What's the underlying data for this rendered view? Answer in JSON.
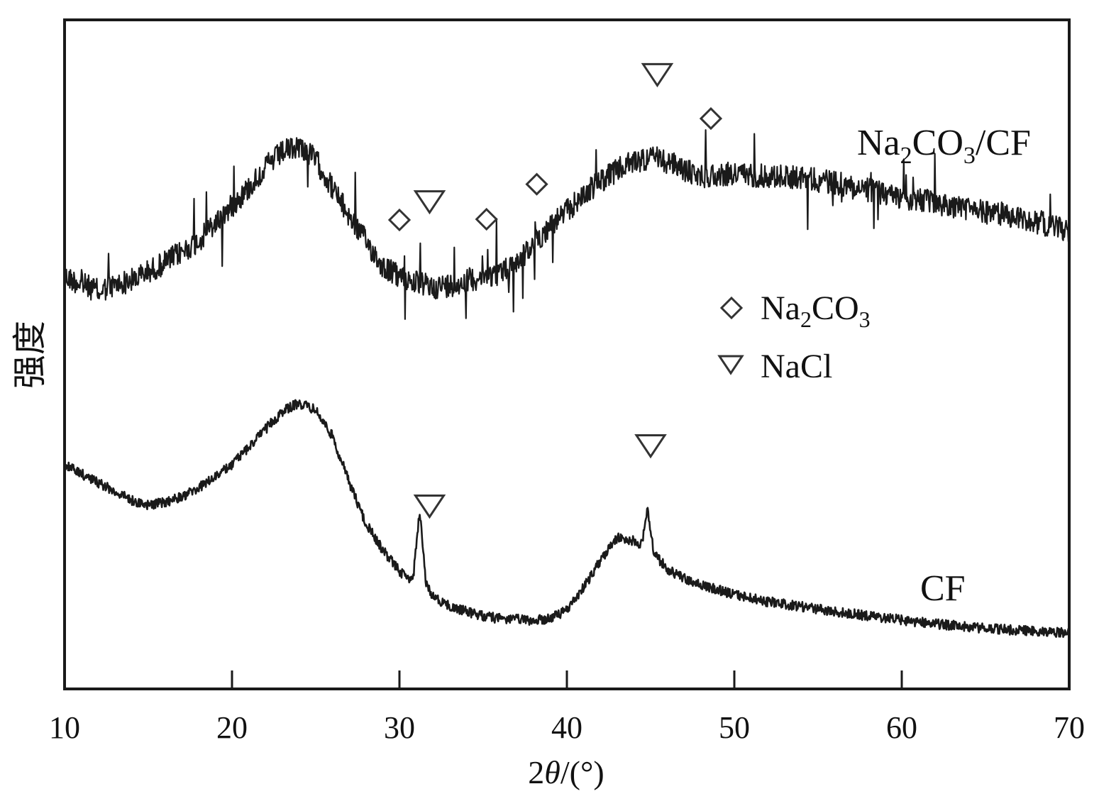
{
  "chart_data": {
    "type": "line",
    "title": "",
    "xlabel": "2θ/(°)",
    "xlabel_parts": {
      "prefix": "2",
      "symbol": "θ",
      "suffix": "/(°)"
    },
    "ylabel": "强度",
    "xlim": [
      10,
      70
    ],
    "x_ticks": [
      10,
      20,
      30,
      40,
      50,
      60,
      70
    ],
    "y_ticks": [],
    "grid": false,
    "series": [
      {
        "name": "Na2CO3/CF",
        "label_parts": {
          "a": "Na",
          "sub1": "2",
          "b": "CO",
          "sub2": "3",
          "c": "/CF"
        },
        "points": [
          [
            10,
            390
          ],
          [
            12,
            410
          ],
          [
            14,
            395
          ],
          [
            16,
            370
          ],
          [
            18,
            340
          ],
          [
            20,
            290
          ],
          [
            21,
            265
          ],
          [
            22,
            235
          ],
          [
            23,
            215
          ],
          [
            24,
            205
          ],
          [
            25,
            225
          ],
          [
            26,
            265
          ],
          [
            27,
            305
          ],
          [
            28,
            340
          ],
          [
            29,
            375
          ],
          [
            30,
            390
          ],
          [
            31,
            398
          ],
          [
            32,
            405
          ],
          [
            33,
            402
          ],
          [
            34,
            395
          ],
          [
            35,
            390
          ],
          [
            36,
            385
          ],
          [
            37,
            370
          ],
          [
            38,
            345
          ],
          [
            39,
            318
          ],
          [
            40,
            298
          ],
          [
            41,
            275
          ],
          [
            42,
            255
          ],
          [
            43,
            240
          ],
          [
            44,
            228
          ],
          [
            45,
            222
          ],
          [
            46,
            228
          ],
          [
            47,
            240
          ],
          [
            48,
            248
          ],
          [
            50,
            245
          ],
          [
            52,
            248
          ],
          [
            54,
            250
          ],
          [
            56,
            258
          ],
          [
            58,
            268
          ],
          [
            60,
            278
          ],
          [
            62,
            286
          ],
          [
            64,
            295
          ],
          [
            66,
            302
          ],
          [
            68,
            312
          ],
          [
            70,
            325
          ]
        ],
        "noise_amplitude": "high"
      },
      {
        "name": "CF",
        "label": "CF",
        "points": [
          [
            10,
            655
          ],
          [
            12,
            680
          ],
          [
            14,
            705
          ],
          [
            15,
            712
          ],
          [
            16,
            708
          ],
          [
            17,
            700
          ],
          [
            18,
            688
          ],
          [
            19,
            672
          ],
          [
            20,
            655
          ],
          [
            21,
            630
          ],
          [
            22,
            605
          ],
          [
            23,
            580
          ],
          [
            24,
            568
          ],
          [
            25,
            578
          ],
          [
            26,
            615
          ],
          [
            27,
            680
          ],
          [
            28,
            738
          ],
          [
            29,
            775
          ],
          [
            30,
            805
          ],
          [
            30.8,
            820
          ],
          [
            31.2,
            718
          ],
          [
            31.6,
            825
          ],
          [
            32,
            840
          ],
          [
            33,
            855
          ],
          [
            34,
            862
          ],
          [
            35,
            868
          ],
          [
            36,
            872
          ],
          [
            37,
            873
          ],
          [
            38,
            875
          ],
          [
            39,
            872
          ],
          [
            40,
            860
          ],
          [
            41,
            828
          ],
          [
            42,
            790
          ],
          [
            43,
            758
          ],
          [
            44,
            762
          ],
          [
            44.5,
            768
          ],
          [
            44.8,
            715
          ],
          [
            45.2,
            780
          ],
          [
            46,
            802
          ],
          [
            47,
            815
          ],
          [
            48,
            825
          ],
          [
            50,
            838
          ],
          [
            52,
            848
          ],
          [
            54,
            855
          ],
          [
            56,
            862
          ],
          [
            58,
            868
          ],
          [
            60,
            874
          ],
          [
            62,
            879
          ],
          [
            64,
            884
          ],
          [
            66,
            887
          ],
          [
            68,
            890
          ],
          [
            70,
            892
          ]
        ],
        "noise_amplitude": "low"
      }
    ],
    "peak_markers": [
      {
        "series": "Na2CO3/CF",
        "phase": "Na2CO3",
        "shape": "diamond",
        "x": 30.0
      },
      {
        "series": "Na2CO3/CF",
        "phase": "NaCl",
        "shape": "triangle",
        "x": 31.8
      },
      {
        "series": "Na2CO3/CF",
        "phase": "Na2CO3",
        "shape": "diamond",
        "x": 35.2
      },
      {
        "series": "Na2CO3/CF",
        "phase": "Na2CO3",
        "shape": "diamond",
        "x": 38.2
      },
      {
        "series": "Na2CO3/CF",
        "phase": "NaCl",
        "shape": "triangle",
        "x": 45.4
      },
      {
        "series": "Na2CO3/CF",
        "phase": "Na2CO3",
        "shape": "diamond",
        "x": 48.6
      },
      {
        "series": "CF",
        "phase": "NaCl",
        "shape": "triangle",
        "x": 31.8
      },
      {
        "series": "CF",
        "phase": "NaCl",
        "shape": "triangle",
        "x": 45.0
      }
    ],
    "legend": {
      "placement": "center-right",
      "entries": [
        {
          "shape": "diamond",
          "label_parts": {
            "a": "Na",
            "sub1": "2",
            "b": "CO",
            "sub2": "3"
          }
        },
        {
          "shape": "triangle",
          "label": "NaCl"
        }
      ]
    },
    "colors": {
      "line": "#1a1a1a",
      "marker": "#333333",
      "axis": "#1a1a1a"
    }
  }
}
